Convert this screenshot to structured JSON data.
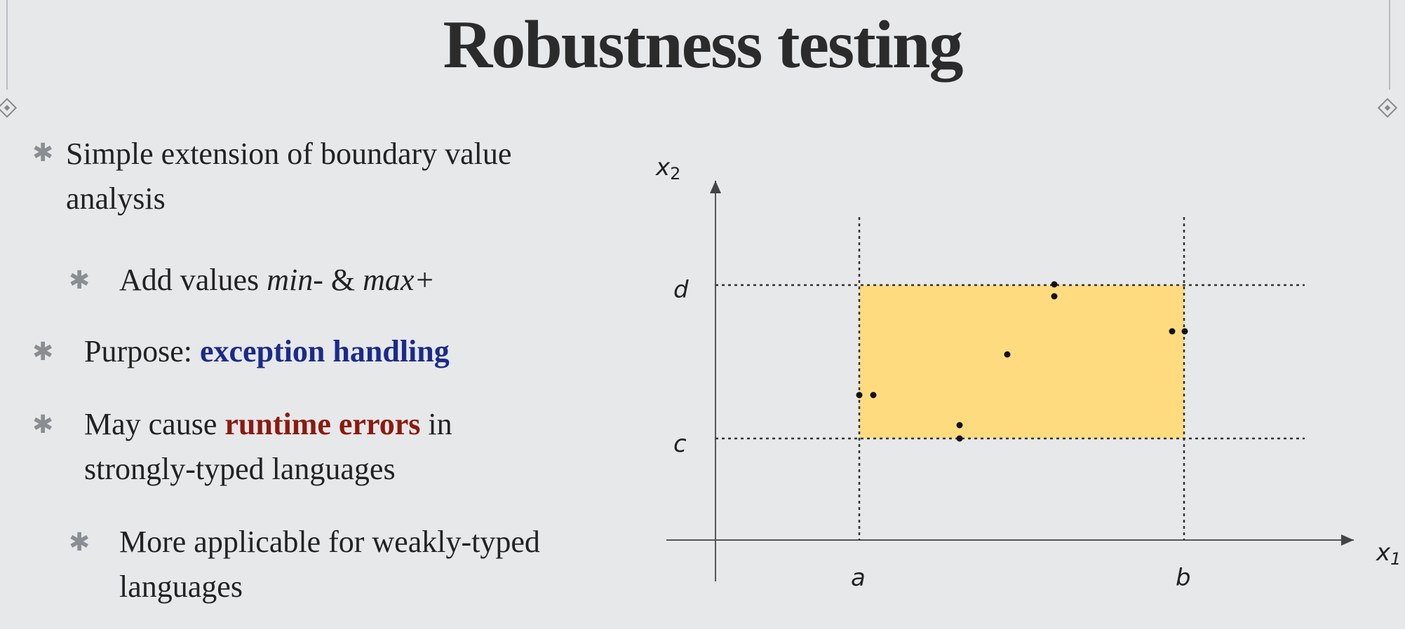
{
  "title": "Robustness testing",
  "bullets": {
    "b1_line1": "Simple extension of boundary value",
    "b1_line2": "analysis",
    "b1_sub_prefix": "Add values ",
    "b1_sub_min": "min-",
    "b1_sub_amp": " & ",
    "b1_sub_max": "max+",
    "b2_prefix": "Purpose: ",
    "b2_highlight": "exception handling",
    "b3_prefix": "May cause ",
    "b3_highlight": "runtime errors",
    "b3_suffix": " in",
    "b3_line2": "strongly-typed languages",
    "b3_sub_line1": "More applicable for weakly-typed",
    "b3_sub_line2": "languages"
  },
  "diagram": {
    "labels": {
      "x_axis": "x",
      "x_axis_sub": "1",
      "y_axis": "x",
      "y_axis_sub": "2",
      "a": "a",
      "b": "b",
      "c": "c",
      "d": "d"
    },
    "region_color": "#ffdb80",
    "bullet_symbol": "✱"
  }
}
